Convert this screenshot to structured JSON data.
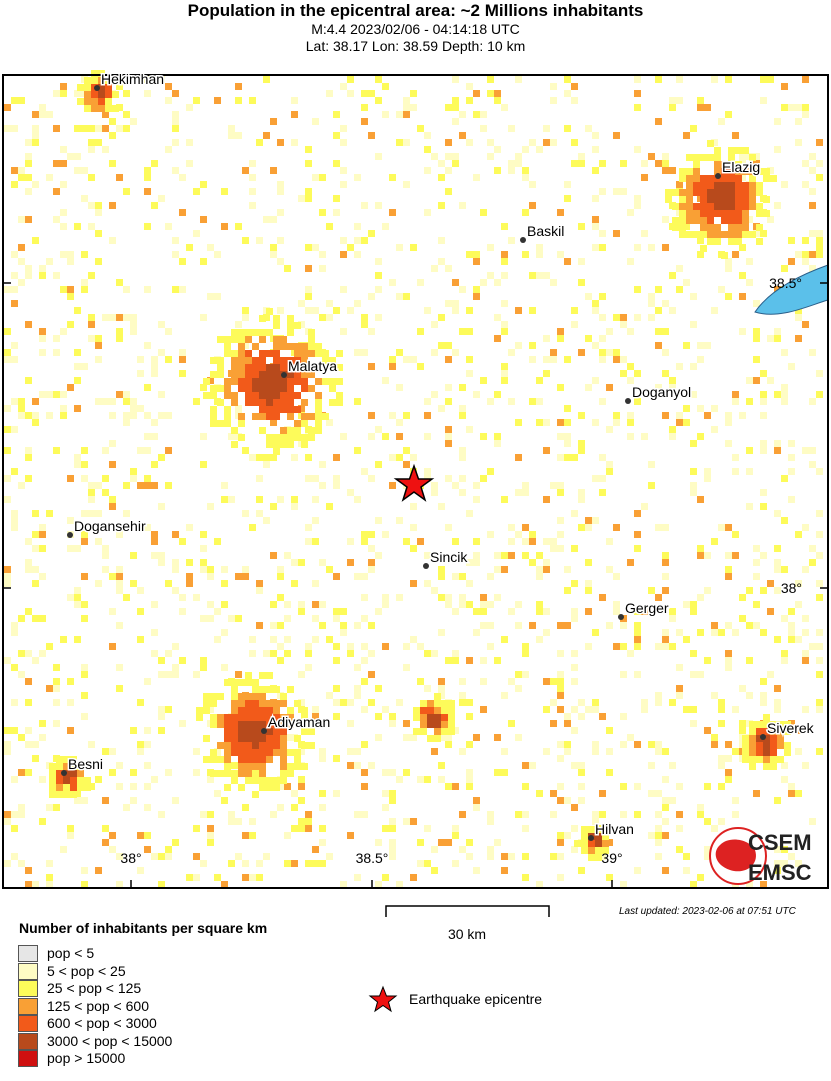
{
  "header": {
    "title": "Population in the epicentral area: ~2 Millions inhabitants",
    "subtitle": "M:4.4 2023/02/06 - 04:14:18 UTC",
    "location": "Lat: 38.17 Lon: 38.59 Depth: 10 km"
  },
  "map": {
    "cities": [
      {
        "name": "Hekimhan",
        "lat_label": ""
      },
      {
        "name": "Elazig"
      },
      {
        "name": "Baskil"
      },
      {
        "name": "Malatya"
      },
      {
        "name": "Doganyol"
      },
      {
        "name": "Dogansehir"
      },
      {
        "name": "Sincik"
      },
      {
        "name": "Gerger"
      },
      {
        "name": "Adiyaman"
      },
      {
        "name": "Siverek"
      },
      {
        "name": "Besni"
      },
      {
        "name": "Hilvan"
      }
    ],
    "lon_ticks": [
      "38°",
      "38.5°",
      "39°"
    ],
    "lat_ticks": [
      "38.5°",
      "38°"
    ],
    "epicenter": {
      "lat": 38.17,
      "lon": 38.59,
      "icon": "star-icon",
      "color": "#ee1111"
    },
    "river_color": "#5bc0ea",
    "logo": {
      "top": "CSEM",
      "bottom": "EMSC"
    }
  },
  "legend": {
    "title": "Number of inhabitants per square km",
    "classes": [
      {
        "label": "pop < 5",
        "color": "#e6e6e6"
      },
      {
        "label": "5 < pop < 25",
        "color": "#fefcc4"
      },
      {
        "label": "25 < pop < 125",
        "color": "#fdfb5a"
      },
      {
        "label": "125 < pop < 600",
        "color": "#f9a035"
      },
      {
        "label": "600 < pop < 3000",
        "color": "#f25a1a"
      },
      {
        "label": "3000 < pop < 15000",
        "color": "#b84a1c"
      },
      {
        "label": "pop > 15000",
        "color": "#cf1010"
      }
    ],
    "epicentre_label": "Earthquake epicentre"
  },
  "scale": {
    "label": "30 km"
  },
  "footer": {
    "updated": "Last updated: 2023-02-06 at 07:51 UTC"
  }
}
